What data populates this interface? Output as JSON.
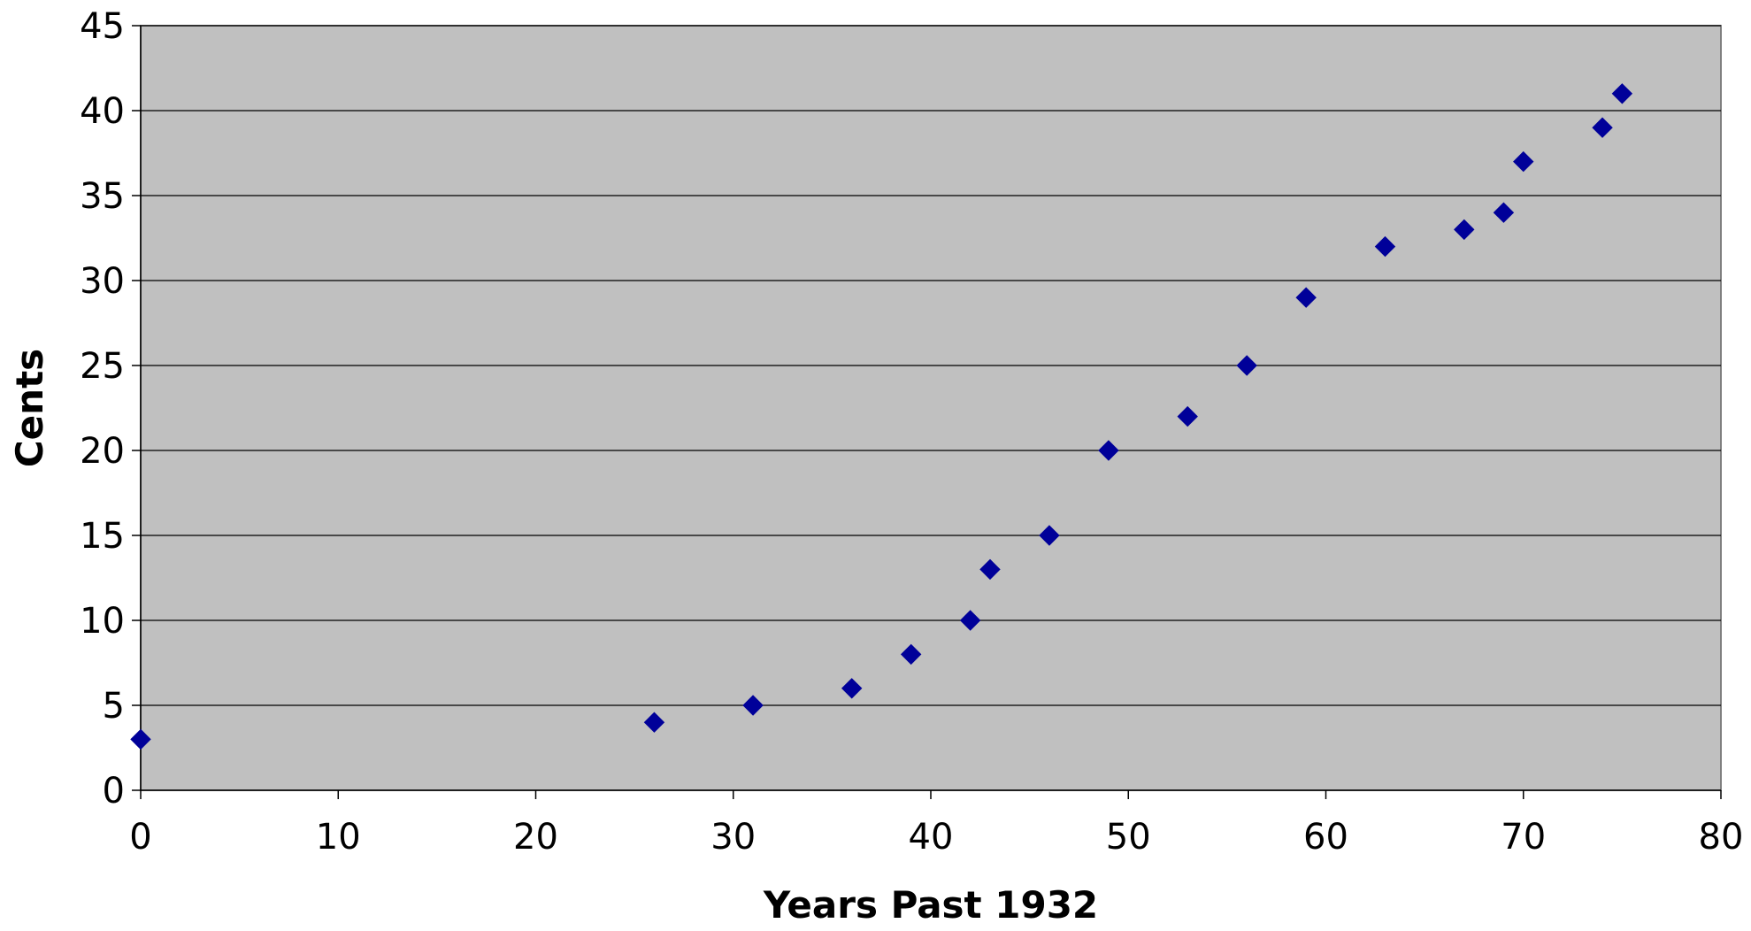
{
  "chart_data": {
    "type": "scatter",
    "title": "",
    "xlabel": "Years Past 1932",
    "ylabel": "Cents",
    "xlim": [
      0,
      80
    ],
    "ylim": [
      0,
      45
    ],
    "x_ticks": [
      "0",
      "10",
      "20",
      "30",
      "40",
      "50",
      "60",
      "70",
      "80"
    ],
    "y_ticks": [
      "0",
      "5",
      "10",
      "15",
      "20",
      "25",
      "30",
      "35",
      "40",
      "45"
    ],
    "grid": "horizontal",
    "legend": "none",
    "colors": {
      "plot_background": "#c0c0c0",
      "marker": "#000099",
      "gridline": "#000000"
    },
    "series": [
      {
        "marker": "diamond",
        "points": [
          {
            "x": 0,
            "y": 3
          },
          {
            "x": 26,
            "y": 4
          },
          {
            "x": 31,
            "y": 5
          },
          {
            "x": 36,
            "y": 6
          },
          {
            "x": 39,
            "y": 8
          },
          {
            "x": 42,
            "y": 10
          },
          {
            "x": 43,
            "y": 13
          },
          {
            "x": 46,
            "y": 15
          },
          {
            "x": 49,
            "y": 20
          },
          {
            "x": 53,
            "y": 22
          },
          {
            "x": 56,
            "y": 25
          },
          {
            "x": 59,
            "y": 29
          },
          {
            "x": 63,
            "y": 32
          },
          {
            "x": 67,
            "y": 33
          },
          {
            "x": 69,
            "y": 34
          },
          {
            "x": 70,
            "y": 37
          },
          {
            "x": 74,
            "y": 39
          },
          {
            "x": 75,
            "y": 41
          }
        ]
      }
    ]
  }
}
